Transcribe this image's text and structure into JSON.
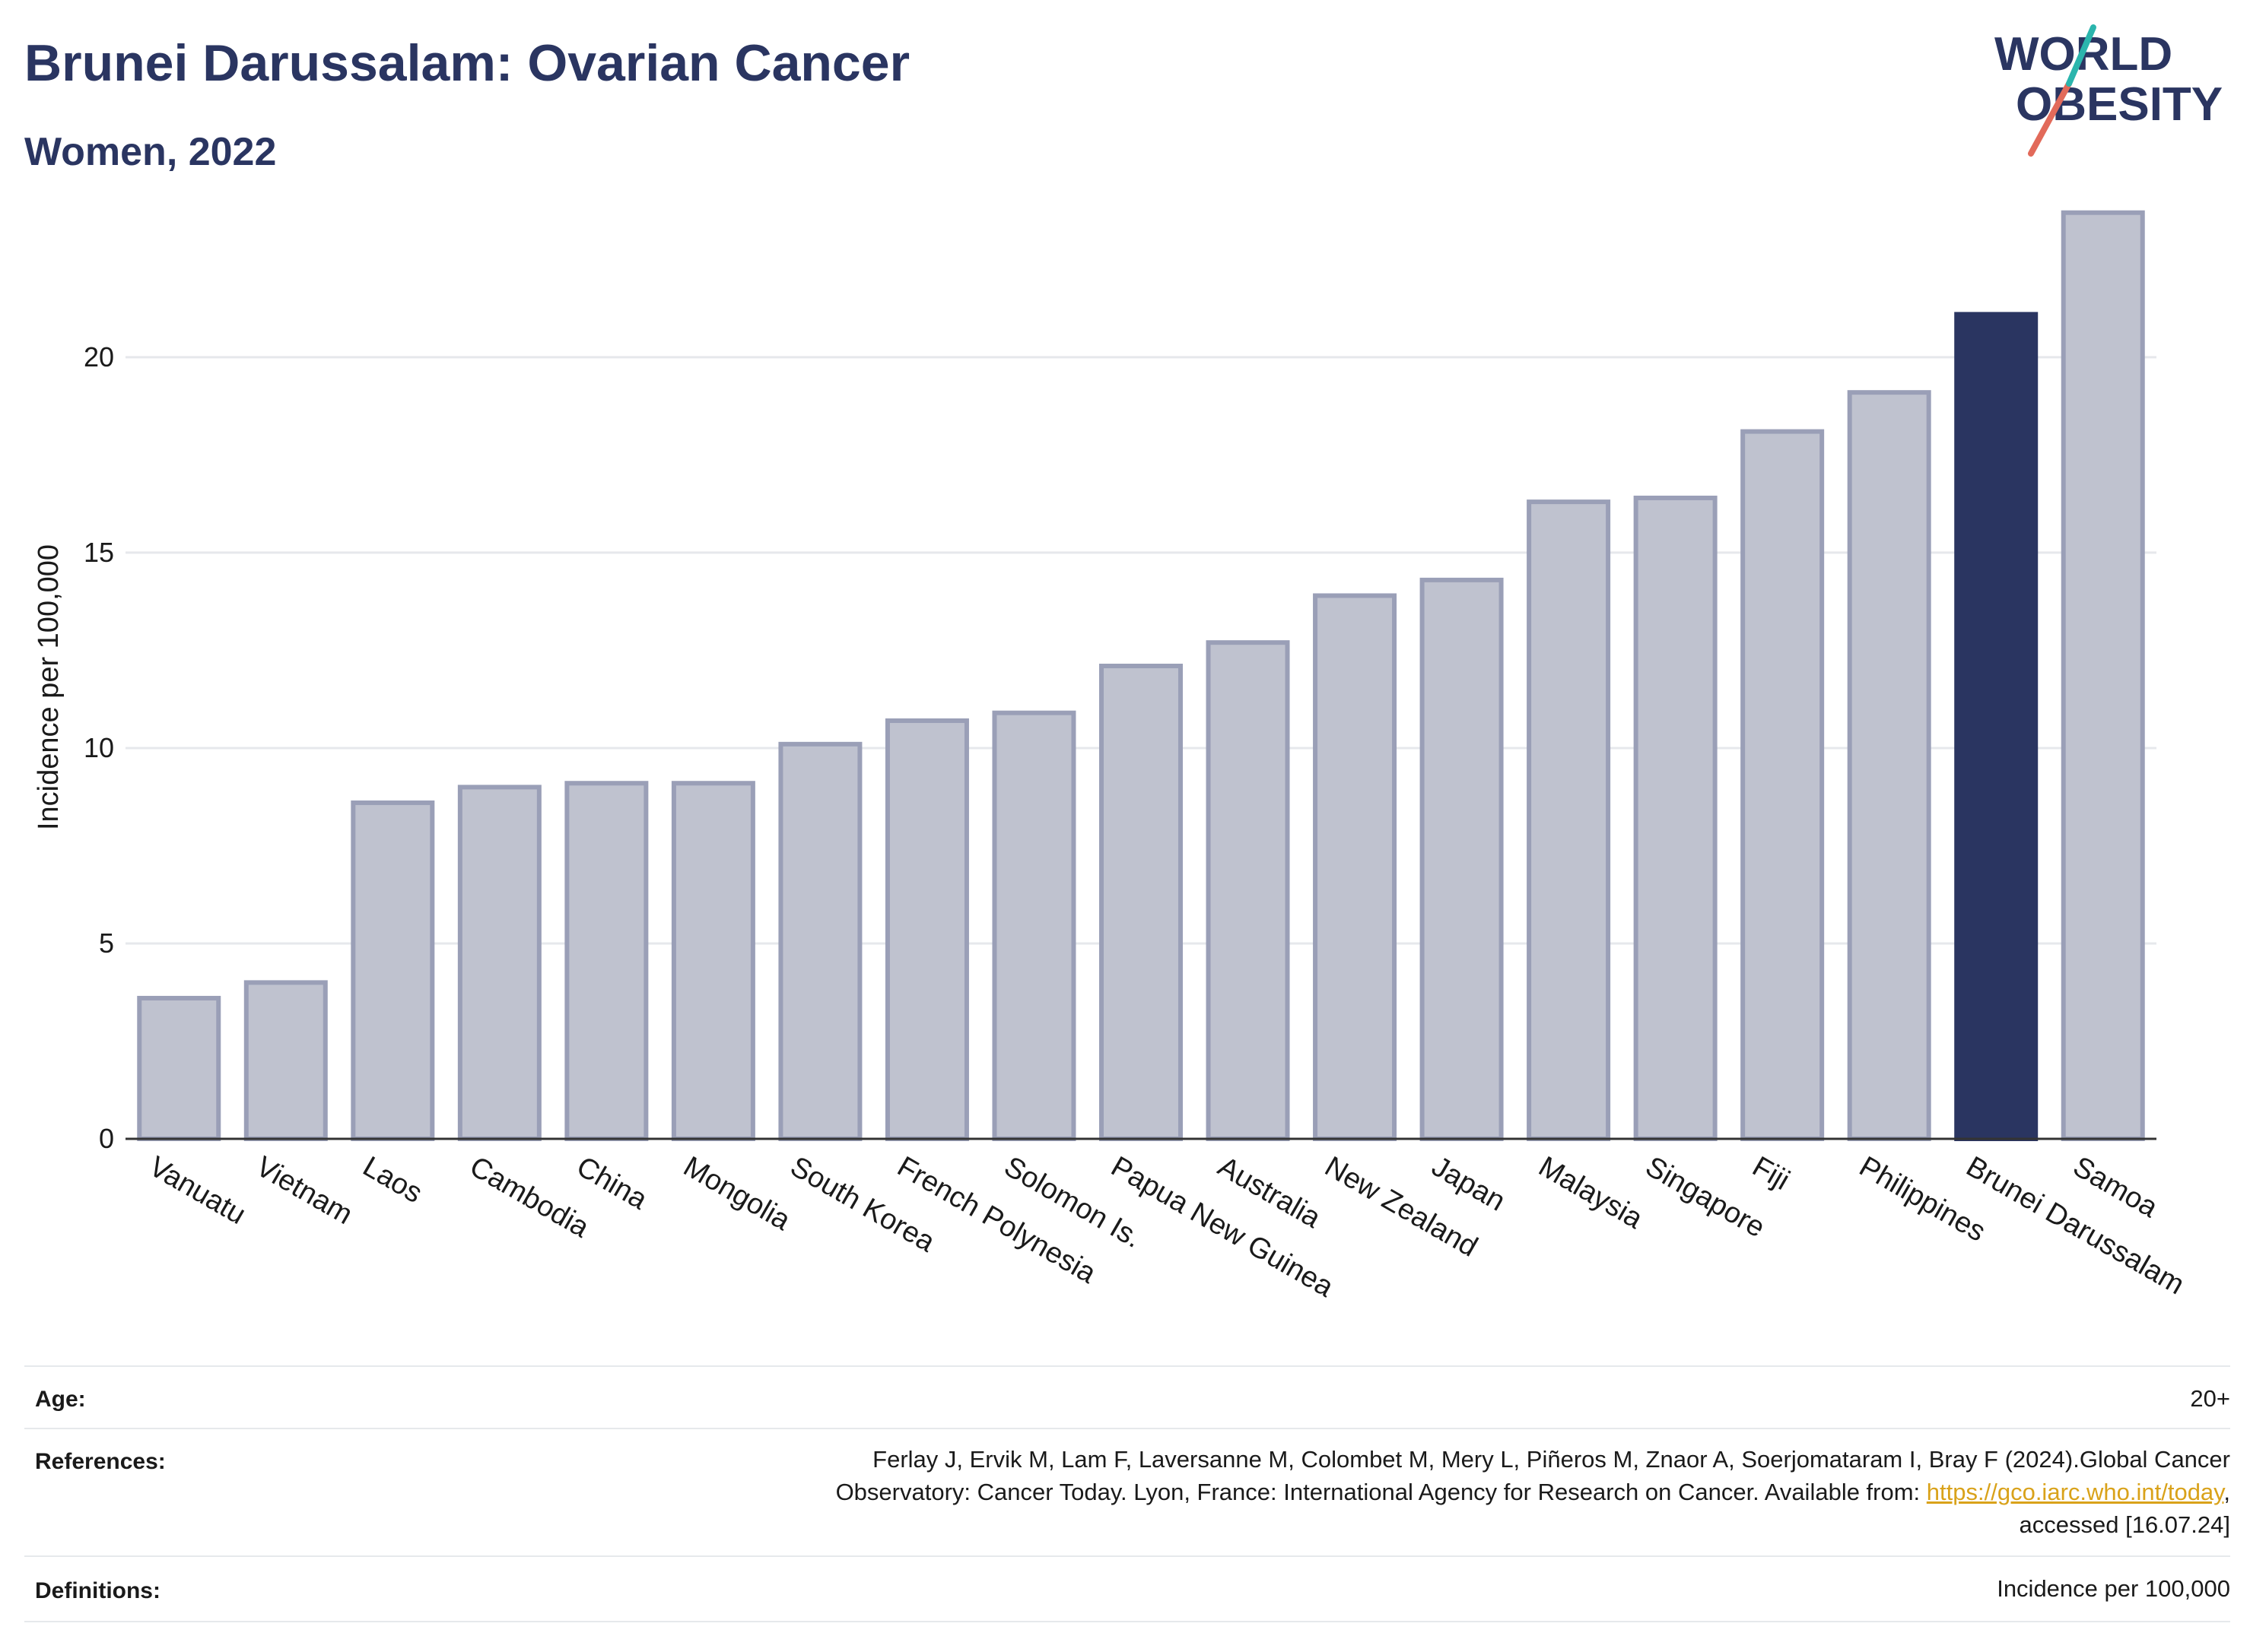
{
  "header": {
    "title": "Brunei Darussalam: Ovarian Cancer",
    "subtitle": "Women, 2022"
  },
  "logo": {
    "line1": "WORLD",
    "line2": "OBESITY"
  },
  "colors": {
    "highlight": "#2a3561",
    "bar_fill": "#bfc2cf",
    "bar_stroke": "#9a9fb7",
    "grid": "#e6e8ec",
    "logo_teal": "#2bb5ad",
    "logo_red": "#e26a5a"
  },
  "chart_data": {
    "type": "bar",
    "title": "Brunei Darussalam: Ovarian Cancer",
    "subtitle": "Women, 2022",
    "ylabel": "Incidence per 100,000",
    "xlabel": "",
    "ylim": [
      0,
      25
    ],
    "yticks": [
      0,
      5,
      10,
      15,
      20
    ],
    "grid": true,
    "highlight": "Brunei Darussalam",
    "categories": [
      "Vanuatu",
      "Vietnam",
      "Laos",
      "Cambodia",
      "China",
      "Mongolia",
      "South Korea",
      "French Polynesia",
      "Solomon Is.",
      "Papua New Guinea",
      "Australia",
      "New Zealand",
      "Japan",
      "Malaysia",
      "Singapore",
      "Fiji",
      "Philippines",
      "Brunei Darussalam",
      "Samoa"
    ],
    "values": [
      3.6,
      4.0,
      8.6,
      9.0,
      9.1,
      9.1,
      10.1,
      10.7,
      10.9,
      12.1,
      12.7,
      13.9,
      14.3,
      16.3,
      16.4,
      18.1,
      19.1,
      21.1,
      23.7
    ]
  },
  "info": {
    "age_label": "Age:",
    "age_value": "20+",
    "references_label": "References:",
    "references_line1": "Ferlay J, Ervik M, Lam F, Laversanne M, Colombet M, Mery L, Piñeros M, Znaor A, Soerjomataram I, Bray F (2024).Global Cancer",
    "references_line2_pre": "Observatory: Cancer Today. Lyon, France: International Agency for Research on Cancer. Available from: ",
    "references_link": "https://gco.iarc.who.int/today",
    "references_line2_post": ",",
    "references_line3": "accessed [16.07.24]",
    "definitions_label": "Definitions:",
    "definitions_value": "Incidence per 100,000"
  }
}
